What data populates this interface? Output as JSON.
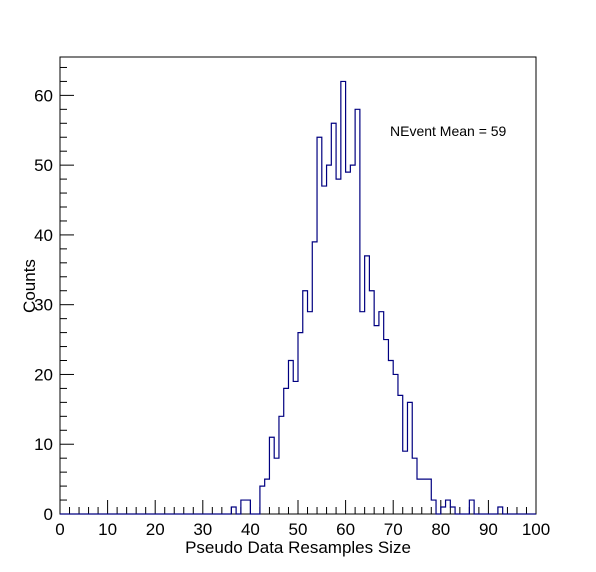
{
  "chart_data": {
    "type": "bar",
    "style": "step-histogram",
    "title": "",
    "xlabel": "Pseudo Data Resamples Size",
    "ylabel": "Counts",
    "xlim": [
      0,
      100
    ],
    "ylim": [
      0,
      65.5
    ],
    "bin_width": 1,
    "x_ticks": [
      0,
      10,
      20,
      30,
      40,
      50,
      60,
      70,
      80,
      90,
      100
    ],
    "y_ticks": [
      0,
      10,
      20,
      30,
      40,
      50,
      60
    ],
    "annotation": "NEvent Mean = 59",
    "line_color": "#000080",
    "grid": false,
    "bins": [
      [
        36,
        1
      ],
      [
        37,
        0
      ],
      [
        38,
        2
      ],
      [
        39,
        2
      ],
      [
        40,
        0
      ],
      [
        41,
        0
      ],
      [
        42,
        4
      ],
      [
        43,
        5
      ],
      [
        44,
        11
      ],
      [
        45,
        8
      ],
      [
        46,
        14
      ],
      [
        47,
        18
      ],
      [
        48,
        22
      ],
      [
        49,
        19
      ],
      [
        50,
        26
      ],
      [
        51,
        32
      ],
      [
        52,
        29
      ],
      [
        53,
        39
      ],
      [
        54,
        54
      ],
      [
        55,
        47
      ],
      [
        56,
        50
      ],
      [
        57,
        56
      ],
      [
        58,
        48
      ],
      [
        59,
        62
      ],
      [
        60,
        49
      ],
      [
        61,
        50
      ],
      [
        62,
        58
      ],
      [
        63,
        29
      ],
      [
        64,
        37
      ],
      [
        65,
        32
      ],
      [
        66,
        27
      ],
      [
        67,
        29
      ],
      [
        68,
        25
      ],
      [
        69,
        22
      ],
      [
        70,
        20
      ],
      [
        71,
        17
      ],
      [
        72,
        9
      ],
      [
        73,
        16
      ],
      [
        74,
        8
      ],
      [
        75,
        5
      ],
      [
        76,
        5
      ],
      [
        77,
        5
      ],
      [
        78,
        2
      ],
      [
        79,
        0
      ],
      [
        80,
        1
      ],
      [
        81,
        2
      ],
      [
        82,
        1
      ],
      [
        83,
        0
      ],
      [
        84,
        0
      ],
      [
        85,
        0
      ],
      [
        86,
        2
      ],
      [
        87,
        0
      ],
      [
        88,
        0
      ],
      [
        89,
        0
      ],
      [
        90,
        0
      ],
      [
        91,
        0
      ],
      [
        92,
        1
      ],
      [
        93,
        0
      ]
    ]
  }
}
